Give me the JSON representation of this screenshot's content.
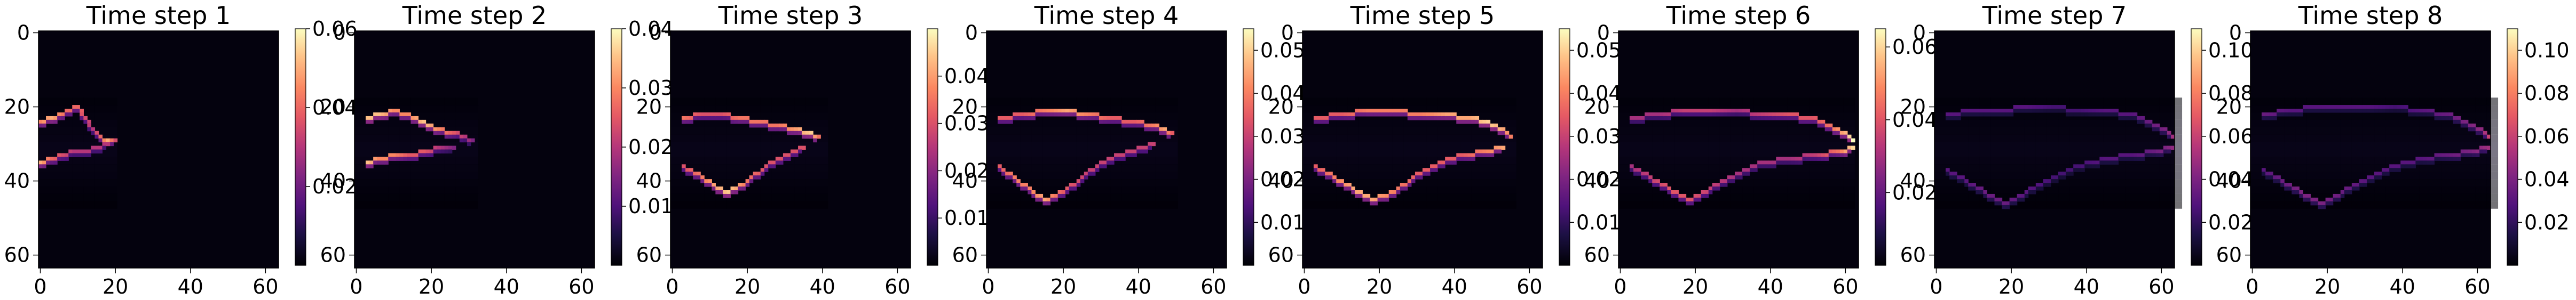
{
  "chart_data": [
    {
      "type": "heatmap",
      "title": "Time step 1",
      "grid_size": 64,
      "colormap": "magma",
      "xticks": [
        "0",
        "20",
        "40",
        "60"
      ],
      "yticks": [
        "0",
        "20",
        "40",
        "60"
      ],
      "xlim": [
        0,
        63
      ],
      "ylim": [
        63,
        0
      ],
      "colorbar": {
        "min": 0.0,
        "max": 0.06,
        "ticks": [
          "0.02",
          "0.04",
          "0.06"
        ]
      },
      "features": [
        {
          "x": [
            0,
            3,
            7,
            10,
            12,
            14,
            16,
            18,
            20
          ],
          "y": [
            24,
            23,
            21,
            20,
            23,
            26,
            28,
            29,
            29
          ],
          "values": [
            0.045,
            0.05,
            0.04,
            0.04,
            0.035,
            0.03,
            0.04,
            0.05,
            0.035
          ]
        },
        {
          "x": [
            0,
            3,
            6,
            9,
            12,
            15,
            18
          ],
          "y": [
            35,
            34,
            33,
            32,
            32,
            31,
            30
          ],
          "values": [
            0.05,
            0.04,
            0.035,
            0.03,
            0.03,
            0.03,
            0.03
          ]
        }
      ]
    },
    {
      "type": "heatmap",
      "title": "Time step 2",
      "grid_size": 64,
      "colormap": "magma",
      "xticks": [
        "0",
        "20",
        "40",
        "60"
      ],
      "yticks": [
        "0",
        "20",
        "40",
        "60"
      ],
      "xlim": [
        0,
        63
      ],
      "ylim": [
        63,
        0
      ],
      "colorbar": {
        "min": 0.0,
        "max": 0.04,
        "ticks": [
          "0.01",
          "0.02",
          "0.03",
          "0.04"
        ]
      },
      "features": [
        {
          "x": [
            3,
            6,
            10,
            14,
            18,
            22,
            26,
            29,
            31
          ],
          "y": [
            23,
            22,
            21,
            22,
            24,
            26,
            27,
            28,
            29
          ],
          "values": [
            0.035,
            0.035,
            0.03,
            0.03,
            0.035,
            0.03,
            0.025,
            0.02,
            0.015
          ]
        },
        {
          "x": [
            3,
            6,
            10,
            14,
            18,
            22,
            26
          ],
          "y": [
            35,
            34,
            33,
            33,
            32,
            31,
            31
          ],
          "values": [
            0.035,
            0.03,
            0.03,
            0.025,
            0.025,
            0.02,
            0.015
          ]
        }
      ]
    },
    {
      "type": "heatmap",
      "title": "Time step 3",
      "grid_size": 64,
      "colormap": "magma",
      "xticks": [
        "0",
        "20",
        "40",
        "60"
      ],
      "yticks": [
        "0",
        "20",
        "40",
        "60"
      ],
      "xlim": [
        0,
        63
      ],
      "ylim": [
        63,
        0
      ],
      "colorbar": {
        "min": 0.0,
        "max": 0.05,
        "ticks": [
          "0.01",
          "0.02",
          "0.03",
          "0.04"
        ]
      },
      "features": [
        {
          "x": [
            3,
            8,
            13,
            18,
            23,
            28,
            33,
            37,
            39
          ],
          "y": [
            23,
            22,
            22,
            23,
            24,
            25,
            26,
            27,
            28
          ],
          "values": [
            0.035,
            0.03,
            0.03,
            0.035,
            0.035,
            0.035,
            0.04,
            0.045,
            0.035
          ]
        },
        {
          "x": [
            3,
            7,
            11,
            15,
            20,
            25,
            30,
            35
          ],
          "y": [
            36,
            38,
            41,
            43,
            40,
            36,
            33,
            31
          ],
          "values": [
            0.03,
            0.035,
            0.04,
            0.045,
            0.035,
            0.03,
            0.03,
            0.03
          ]
        }
      ]
    },
    {
      "type": "heatmap",
      "title": "Time step 4",
      "grid_size": 64,
      "colormap": "magma",
      "xticks": [
        "0",
        "20",
        "40",
        "60"
      ],
      "yticks": [
        "0",
        "20",
        "40",
        "60"
      ],
      "xlim": [
        0,
        63
      ],
      "ylim": [
        63,
        0
      ],
      "colorbar": {
        "min": 0.0,
        "max": 0.055,
        "ticks": [
          "0.01",
          "0.02",
          "0.03",
          "0.04",
          "0.05"
        ]
      },
      "features": [
        {
          "x": [
            3,
            9,
            15,
            21,
            27,
            33,
            39,
            44,
            47,
            49
          ],
          "y": [
            23,
            22,
            21,
            21,
            22,
            23,
            24,
            25,
            26,
            27
          ],
          "values": [
            0.035,
            0.035,
            0.04,
            0.045,
            0.04,
            0.035,
            0.035,
            0.04,
            0.045,
            0.035
          ]
        },
        {
          "x": [
            3,
            7,
            11,
            15,
            20,
            26,
            32,
            38,
            44
          ],
          "y": [
            36,
            39,
            42,
            45,
            43,
            38,
            34,
            32,
            30
          ],
          "values": [
            0.035,
            0.04,
            0.04,
            0.045,
            0.035,
            0.03,
            0.03,
            0.03,
            0.03
          ]
        }
      ]
    },
    {
      "type": "heatmap",
      "title": "Time step 5",
      "grid_size": 64,
      "colormap": "magma",
      "xticks": [
        "0",
        "20",
        "40",
        "60"
      ],
      "yticks": [
        "0",
        "20",
        "40",
        "60"
      ],
      "xlim": [
        0,
        63
      ],
      "ylim": [
        63,
        0
      ],
      "colorbar": {
        "min": 0.0,
        "max": 0.055,
        "ticks": [
          "0.01",
          "0.02",
          "0.03",
          "0.04",
          "0.05"
        ]
      },
      "features": [
        {
          "x": [
            3,
            10,
            17,
            24,
            31,
            38,
            44,
            49,
            53,
            55
          ],
          "y": [
            23,
            22,
            21,
            21,
            22,
            22,
            23,
            24,
            26,
            28
          ],
          "values": [
            0.035,
            0.035,
            0.04,
            0.04,
            0.04,
            0.045,
            0.045,
            0.05,
            0.045,
            0.04
          ]
        },
        {
          "x": [
            3,
            8,
            13,
            18,
            24,
            30,
            36,
            42,
            48,
            53
          ],
          "y": [
            36,
            39,
            42,
            45,
            43,
            38,
            35,
            33,
            32,
            31
          ],
          "values": [
            0.035,
            0.04,
            0.045,
            0.045,
            0.04,
            0.035,
            0.035,
            0.035,
            0.04,
            0.045
          ]
        }
      ]
    },
    {
      "type": "heatmap",
      "title": "Time step 6",
      "grid_size": 64,
      "colormap": "magma",
      "xticks": [
        "0",
        "20",
        "40",
        "60"
      ],
      "yticks": [
        "0",
        "20",
        "40",
        "60"
      ],
      "xlim": [
        0,
        63
      ],
      "ylim": [
        63,
        0
      ],
      "colorbar": {
        "min": 0.0,
        "max": 0.065,
        "ticks": [
          "0.02",
          "0.04",
          "0.06"
        ]
      },
      "features": [
        {
          "x": [
            3,
            10,
            17,
            24,
            31,
            38,
            45,
            51,
            56,
            60,
            62
          ],
          "y": [
            23,
            22,
            21,
            21,
            21,
            22,
            22,
            23,
            25,
            27,
            29
          ],
          "values": [
            0.03,
            0.03,
            0.035,
            0.035,
            0.03,
            0.035,
            0.04,
            0.04,
            0.045,
            0.055,
            0.065
          ]
        },
        {
          "x": [
            3,
            8,
            13,
            18,
            24,
            31,
            38,
            45,
            52,
            58,
            62
          ],
          "y": [
            36,
            39,
            42,
            45,
            42,
            38,
            35,
            34,
            33,
            32,
            31
          ],
          "values": [
            0.03,
            0.035,
            0.04,
            0.04,
            0.035,
            0.03,
            0.03,
            0.03,
            0.035,
            0.045,
            0.06
          ]
        }
      ]
    },
    {
      "type": "heatmap",
      "title": "Time step 7",
      "grid_size": 64,
      "colormap": "magma",
      "xticks": [
        "0",
        "20",
        "40",
        "60"
      ],
      "yticks": [
        "0",
        "20",
        "40",
        "60"
      ],
      "xlim": [
        0,
        63
      ],
      "ylim": [
        63,
        0
      ],
      "colorbar": {
        "min": 0.0,
        "max": 0.11,
        "ticks": [
          "0.02",
          "0.04",
          "0.06",
          "0.08",
          "0.10"
        ]
      },
      "features": [
        {
          "x": [
            3,
            10,
            17,
            24,
            31,
            38,
            45,
            52,
            57,
            61,
            63
          ],
          "y": [
            22,
            21,
            21,
            20,
            20,
            21,
            21,
            22,
            24,
            26,
            28
          ],
          "values": [
            0.03,
            0.03,
            0.03,
            0.03,
            0.025,
            0.025,
            0.03,
            0.03,
            0.035,
            0.04,
            0.05
          ]
        },
        {
          "x": [
            3,
            8,
            13,
            18,
            24,
            31,
            38,
            45,
            52,
            58,
            63
          ],
          "y": [
            37,
            40,
            43,
            46,
            43,
            39,
            36,
            34,
            33,
            32,
            31
          ],
          "values": [
            0.03,
            0.03,
            0.035,
            0.035,
            0.03,
            0.025,
            0.025,
            0.03,
            0.03,
            0.035,
            0.045
          ]
        }
      ]
    },
    {
      "type": "heatmap",
      "title": "Time step 8",
      "grid_size": 64,
      "colormap": "magma",
      "xticks": [
        "0",
        "20",
        "40",
        "60"
      ],
      "yticks": [
        "0",
        "20",
        "40",
        "60"
      ],
      "xlim": [
        0,
        63
      ],
      "ylim": [
        63,
        0
      ],
      "colorbar": {
        "min": 0.0,
        "max": 0.11,
        "ticks": [
          "0.02",
          "0.04",
          "0.06",
          "0.08",
          "0.10"
        ]
      },
      "features": [
        {
          "x": [
            3,
            10,
            17,
            24,
            31,
            38,
            45,
            52,
            57,
            61,
            63
          ],
          "y": [
            22,
            21,
            20,
            20,
            20,
            20,
            21,
            22,
            24,
            26,
            28
          ],
          "values": [
            0.035,
            0.03,
            0.03,
            0.03,
            0.03,
            0.025,
            0.03,
            0.035,
            0.04,
            0.045,
            0.06
          ]
        },
        {
          "x": [
            3,
            8,
            13,
            18,
            24,
            31,
            38,
            45,
            52,
            58,
            63
          ],
          "y": [
            37,
            40,
            43,
            46,
            43,
            39,
            36,
            34,
            33,
            32,
            31
          ],
          "values": [
            0.03,
            0.035,
            0.04,
            0.04,
            0.035,
            0.03,
            0.03,
            0.03,
            0.035,
            0.04,
            0.05
          ]
        }
      ]
    }
  ]
}
